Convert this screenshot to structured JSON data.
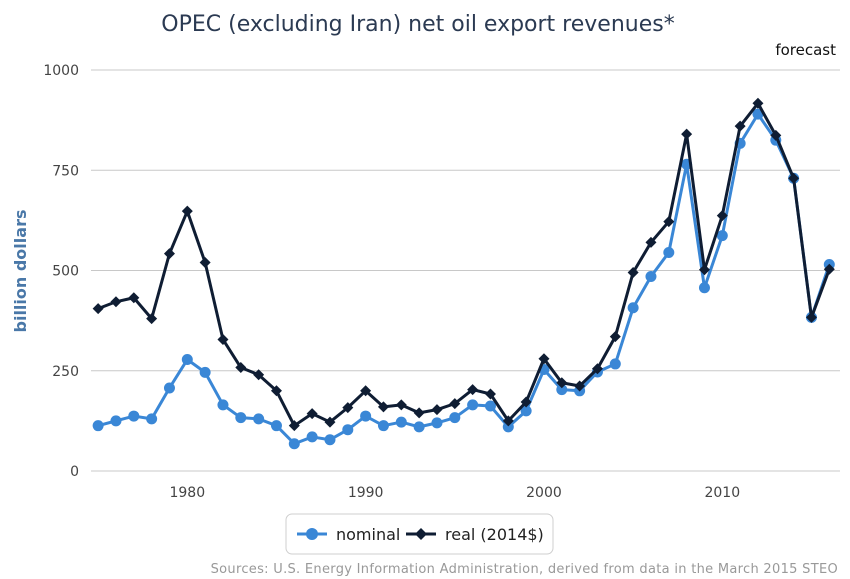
{
  "chart_data": {
    "type": "line",
    "title": "OPEC (excluding Iran) net oil export revenues*",
    "annotation": "forecast",
    "ylabel": "billion dollars",
    "xlabel": "",
    "ylim": [
      0,
      1000
    ],
    "xlim": [
      1974.6,
      2016.6
    ],
    "yticks": [
      0,
      250,
      500,
      750,
      1000
    ],
    "xticks": [
      1980,
      1990,
      2000,
      2010
    ],
    "grid": "horizontal",
    "legend_position": "bottom-center",
    "x": [
      1975,
      1976,
      1977,
      1978,
      1979,
      1980,
      1981,
      1982,
      1983,
      1984,
      1985,
      1986,
      1987,
      1988,
      1989,
      1990,
      1991,
      1992,
      1993,
      1994,
      1995,
      1996,
      1997,
      1998,
      1999,
      2000,
      2001,
      2002,
      2003,
      2004,
      2005,
      2006,
      2007,
      2008,
      2009,
      2010,
      2011,
      2012,
      2013,
      2014,
      2015,
      2016
    ],
    "series": [
      {
        "name": "nominal",
        "color": "#3a87d6",
        "marker": "circle",
        "values": [
          113,
          125,
          137,
          130,
          207,
          278,
          246,
          165,
          133,
          130,
          113,
          68,
          85,
          78,
          103,
          137,
          113,
          122,
          110,
          120,
          133,
          165,
          162,
          110,
          150,
          253,
          203,
          200,
          247,
          267,
          407,
          485,
          545,
          765,
          457,
          587,
          817,
          890,
          825,
          730,
          383,
          515
        ]
      },
      {
        "name": "real (2014$)",
        "color": "#0f1d33",
        "marker": "diamond",
        "values": [
          405,
          422,
          432,
          380,
          542,
          648,
          520,
          328,
          258,
          240,
          200,
          113,
          143,
          122,
          158,
          200,
          160,
          165,
          145,
          153,
          168,
          203,
          192,
          125,
          172,
          280,
          220,
          212,
          255,
          335,
          495,
          570,
          622,
          840,
          502,
          637,
          860,
          917,
          837,
          730,
          383,
          503
        ]
      }
    ],
    "source": "Sources: U.S. Energy Information Administration, derived from data in the March 2015 STEO"
  }
}
